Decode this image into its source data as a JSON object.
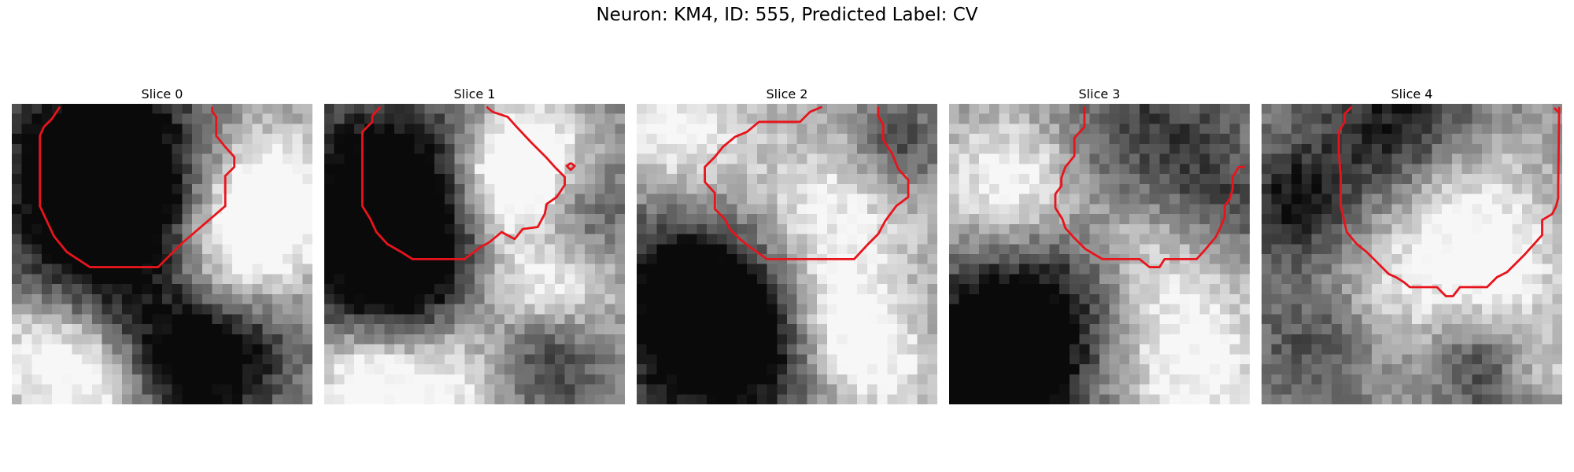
{
  "figure": {
    "title": "Neuron: KM4, ID: 555, Predicted Label: CV",
    "colors": {
      "contour": "#e8141c"
    },
    "panels": [
      {
        "title": "Slice 0"
      },
      {
        "title": "Slice 1"
      },
      {
        "title": "Slice 2"
      },
      {
        "title": "Slice 3"
      },
      {
        "title": "Slice 4"
      }
    ]
  }
}
